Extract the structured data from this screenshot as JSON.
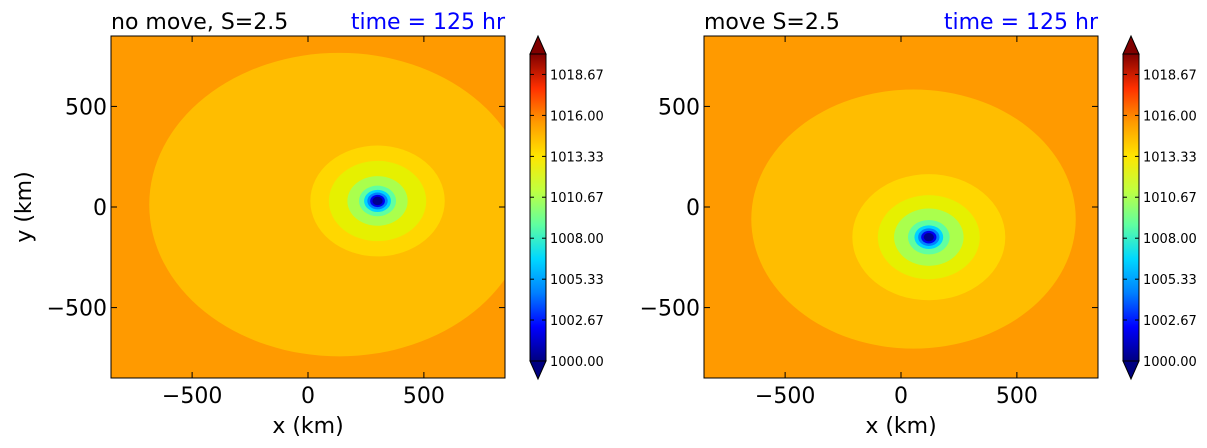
{
  "chart_data": [
    {
      "type": "contourf",
      "title": "no move, S=2.5",
      "time_label": "time = 125 hr",
      "xlabel": "x (km)",
      "ylabel": "y (km)",
      "xlim": [
        -850,
        850
      ],
      "ylim": [
        -850,
        850
      ],
      "xticks": [
        -500,
        0,
        500
      ],
      "yticks": [
        -500,
        0,
        500
      ],
      "xtick_labels": [
        "−500",
        "0",
        "500"
      ],
      "ytick_labels": [
        "−500",
        "0",
        "500"
      ],
      "vortex_center_km": [
        300,
        30
      ],
      "field_levels": [
        {
          "level": 1015.3,
          "radius_km": 820,
          "color": "#ffbd00"
        },
        {
          "level": 1014.7,
          "radius_km": 290,
          "color": "#ffd700"
        },
        {
          "level": 1013.3,
          "radius_km": 210,
          "color": "#e6f000"
        },
        {
          "level": 1011.5,
          "radius_km": 130,
          "color": "#aaff4d"
        },
        {
          "level": 1009.0,
          "radius_km": 80,
          "color": "#60ffa0"
        },
        {
          "level": 1007.0,
          "radius_km": 58,
          "color": "#00d4ff"
        },
        {
          "level": 1004.5,
          "radius_km": 44,
          "color": "#0080ff"
        },
        {
          "level": 1001.5,
          "radius_km": 32,
          "color": "#0000ee"
        },
        {
          "level": 1000.0,
          "radius_km": 22,
          "color": "#000090"
        }
      ],
      "colorbar": {
        "min": 1000.0,
        "max": 1020.0,
        "tick_labels": [
          "1000.00",
          "1002.67",
          "1005.33",
          "1008.00",
          "1010.67",
          "1013.33",
          "1016.00",
          "1018.67"
        ],
        "extend": "both"
      }
    },
    {
      "type": "contourf",
      "title": "move S=2.5",
      "time_label": "time = 125 hr",
      "xlabel": "x (km)",
      "ylabel": "",
      "xlim": [
        -850,
        850
      ],
      "ylim": [
        -850,
        850
      ],
      "xticks": [
        -500,
        0,
        500
      ],
      "yticks": [
        -500,
        0,
        500
      ],
      "xtick_labels": [
        "−500",
        "0",
        "500"
      ],
      "ytick_labels": [
        "−500",
        "0",
        "500"
      ],
      "vortex_center_km": [
        120,
        -150
      ],
      "field_levels": [
        {
          "level": 1015.3,
          "radius_km": 700,
          "color": "#ffbd00"
        },
        {
          "level": 1014.7,
          "radius_km": 330,
          "color": "#ffd700"
        },
        {
          "level": 1013.3,
          "radius_km": 220,
          "color": "#e6f000"
        },
        {
          "level": 1011.5,
          "radius_km": 150,
          "color": "#aaff4d"
        },
        {
          "level": 1009.0,
          "radius_km": 90,
          "color": "#60ffa0"
        },
        {
          "level": 1007.0,
          "radius_km": 62,
          "color": "#00d4ff"
        },
        {
          "level": 1004.5,
          "radius_km": 46,
          "color": "#0080ff"
        },
        {
          "level": 1001.5,
          "radius_km": 33,
          "color": "#0000ee"
        },
        {
          "level": 1000.0,
          "radius_km": 22,
          "color": "#000090"
        }
      ],
      "colorbar": {
        "min": 1000.0,
        "max": 1020.0,
        "tick_labels": [
          "1000.00",
          "1002.67",
          "1005.33",
          "1008.00",
          "1010.67",
          "1013.33",
          "1016.00",
          "1018.67"
        ],
        "extend": "both"
      }
    }
  ],
  "colors": {
    "background_field": "#ff9a00",
    "title_text": "#000000",
    "time_text": "#0000ff",
    "colorbar_stops": [
      "#000080",
      "#0000ff",
      "#0080ff",
      "#00d8ff",
      "#60ffa0",
      "#c0ff40",
      "#ffe600",
      "#ff9a00",
      "#ff3000",
      "#800000"
    ]
  }
}
